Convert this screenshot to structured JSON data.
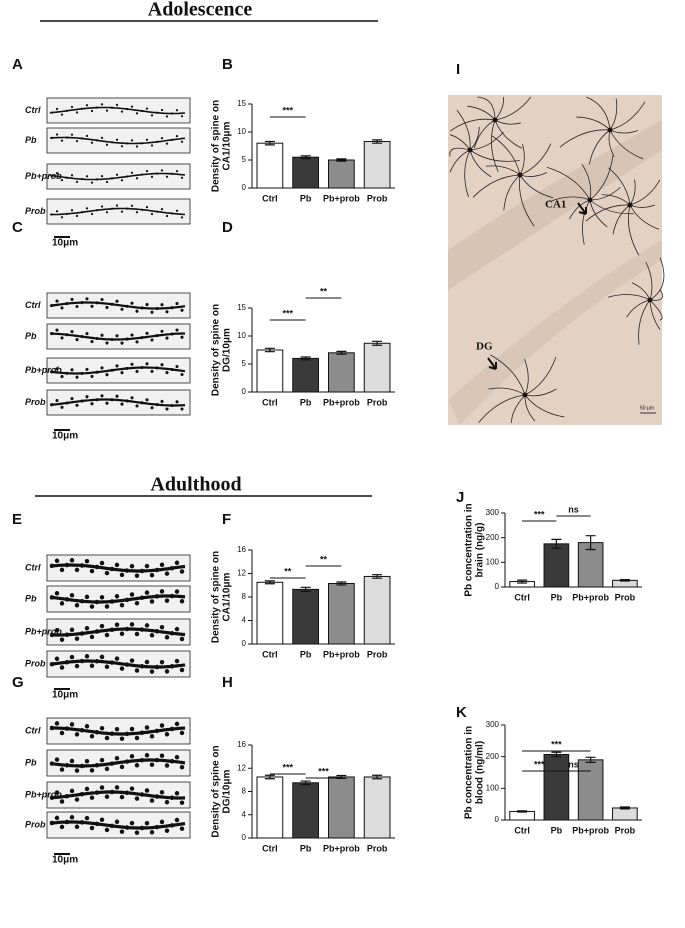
{
  "headings": [
    "Adolescence",
    "Adulthood"
  ],
  "panel_letters": [
    "A",
    "B",
    "C",
    "D",
    "E",
    "F",
    "G",
    "H",
    "I",
    "J",
    "K"
  ],
  "dendrite_panels": [
    {
      "rows": [
        "Ctrl",
        "Pb",
        "Pb+prob",
        "Prob"
      ],
      "scale": "10μm"
    },
    {
      "rows": [
        "Ctrl",
        "Pb",
        "Pb+prob",
        "Prob"
      ],
      "scale": "10μm"
    },
    {
      "rows": [
        "Ctrl",
        "Pb",
        "Pb+prob",
        "Prob"
      ],
      "scale": "10μm"
    },
    {
      "rows": [
        "Ctrl",
        "Pb",
        "Pb+prob",
        "Prob"
      ],
      "scale": "10μm"
    }
  ],
  "image_panel": {
    "labels": [
      "CA1",
      "DG"
    ],
    "scale": "50 μm"
  },
  "chart_data": [
    {
      "type": "bar",
      "ylabel": [
        "Density of spine on",
        "CA1/10μm"
      ],
      "categories": [
        "Ctrl",
        "Pb",
        "Pb+prob",
        "Prob"
      ],
      "values": [
        8,
        5.5,
        5,
        8.3
      ],
      "errors": [
        0.3,
        0.25,
        0.2,
        0.3
      ],
      "colors": [
        "#ffffff",
        "#3a3a3a",
        "#8c8c8c",
        "#dcdcdc"
      ],
      "ylim": [
        0,
        15
      ],
      "yticks": [
        0,
        5,
        10,
        15
      ],
      "significance": [
        {
          "from": 0,
          "to": 1,
          "label": "***"
        }
      ]
    },
    {
      "type": "bar",
      "ylabel": [
        "Density of spine on",
        "DG/10μm"
      ],
      "categories": [
        "Ctrl",
        "Pb",
        "Pb+prob",
        "Prob"
      ],
      "values": [
        7.5,
        6,
        7,
        8.7
      ],
      "errors": [
        0.3,
        0.25,
        0.25,
        0.35
      ],
      "colors": [
        "#ffffff",
        "#3a3a3a",
        "#8c8c8c",
        "#dcdcdc"
      ],
      "ylim": [
        0,
        15
      ],
      "yticks": [
        0,
        5,
        10,
        15
      ],
      "significance": [
        {
          "from": 0,
          "to": 1,
          "label": "***"
        },
        {
          "from": 1,
          "to": 2,
          "label": "**"
        }
      ]
    },
    {
      "type": "bar",
      "ylabel": [
        "Density of spine on",
        "CA1/10μm"
      ],
      "categories": [
        "Ctrl",
        "Pb",
        "Pb+prob",
        "Prob"
      ],
      "values": [
        10.5,
        9.3,
        10.3,
        11.5
      ],
      "errors": [
        0.25,
        0.35,
        0.25,
        0.3
      ],
      "colors": [
        "#ffffff",
        "#3a3a3a",
        "#8c8c8c",
        "#dcdcdc"
      ],
      "ylim": [
        0,
        16
      ],
      "yticks": [
        0,
        4,
        8,
        12,
        16
      ],
      "significance": [
        {
          "from": 0,
          "to": 1,
          "label": "**"
        },
        {
          "from": 1,
          "to": 2,
          "label": "**"
        }
      ]
    },
    {
      "type": "bar",
      "ylabel": [
        "Density of spine on",
        "DG/10μm"
      ],
      "categories": [
        "Ctrl",
        "Pb",
        "Pb+prob",
        "Prob"
      ],
      "values": [
        10.5,
        9.5,
        10.5,
        10.5
      ],
      "errors": [
        0.3,
        0.3,
        0.25,
        0.3
      ],
      "colors": [
        "#ffffff",
        "#3a3a3a",
        "#8c8c8c",
        "#dcdcdc"
      ],
      "ylim": [
        0,
        16
      ],
      "yticks": [
        0,
        4,
        8,
        12,
        16
      ],
      "significance": [
        {
          "from": 0,
          "to": 1,
          "label": "***"
        },
        {
          "from": 1,
          "to": 2,
          "label": "***"
        }
      ]
    },
    {
      "type": "bar",
      "ylabel": [
        "Pb concentration in",
        "brain (ng/g)"
      ],
      "categories": [
        "Ctrl",
        "Pb",
        "Pb+prob",
        "Prob"
      ],
      "values": [
        22,
        175,
        180,
        27
      ],
      "errors": [
        6,
        18,
        28,
        3
      ],
      "colors": [
        "#ffffff",
        "#3a3a3a",
        "#8c8c8c",
        "#dcdcdc"
      ],
      "ylim": [
        0,
        300
      ],
      "yticks": [
        0,
        100,
        200,
        300
      ],
      "significance": [
        {
          "from": 0,
          "to": 1,
          "label": "***"
        },
        {
          "from": 1,
          "to": 2,
          "label": "ns"
        }
      ]
    },
    {
      "type": "bar",
      "ylabel": [
        "Pb concentration in",
        "blood (ng/ml)"
      ],
      "categories": [
        "Ctrl",
        "Pb",
        "Pb+prob",
        "Prob"
      ],
      "values": [
        27,
        207,
        190,
        38
      ],
      "errors": [
        2,
        7,
        8,
        3
      ],
      "colors": [
        "#ffffff",
        "#3a3a3a",
        "#8c8c8c",
        "#dcdcdc"
      ],
      "ylim": [
        0,
        300
      ],
      "yticks": [
        0,
        100,
        200,
        300
      ],
      "significance": [
        {
          "from": 0,
          "to": 1,
          "label": "***"
        },
        {
          "from": 0,
          "to": 2,
          "label": "***"
        },
        {
          "from": 1,
          "to": 2,
          "label": "ns"
        }
      ]
    }
  ]
}
